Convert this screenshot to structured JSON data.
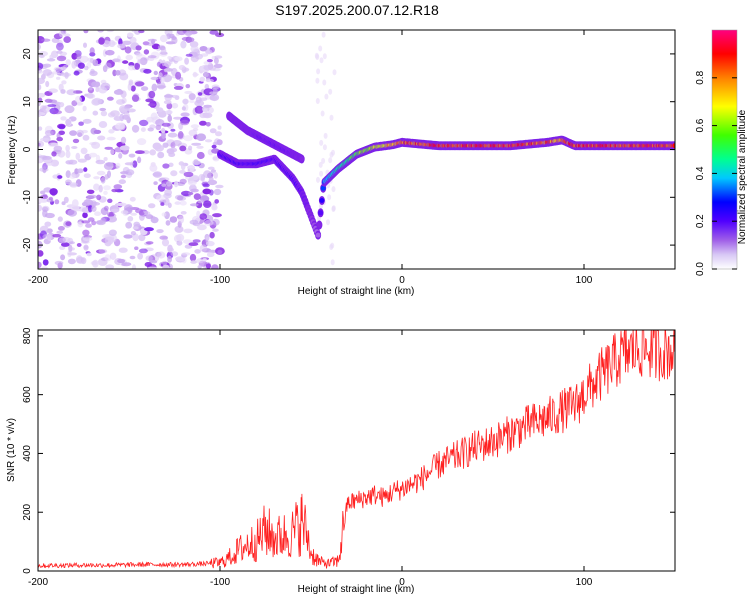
{
  "figure": {
    "title": "S197.2025.200.07.12.R18"
  },
  "chart_data": [
    {
      "type": "heatmap",
      "title": "S197.2025.200.07.12.R18",
      "xlabel": "Height of straight line (km)",
      "ylabel": "Frequency (Hz)",
      "xlim": [
        -200,
        150
      ],
      "ylim": [
        -25,
        25
      ],
      "xticks": [
        -200,
        -100,
        0,
        100
      ],
      "yticks": [
        -20,
        -10,
        0,
        10,
        20
      ],
      "colorbar": {
        "label": "Normalized spectral amplitude",
        "range": [
          0,
          1
        ],
        "ticks": [
          0.0,
          0.2,
          0.4,
          0.6,
          0.8
        ],
        "tick_labels": [
          "0.0",
          "0.2",
          "0.4",
          "0.6",
          "0.8"
        ],
        "colormap": [
          "#ffffff",
          "#c8a8f0",
          "#8a2be2",
          "#4b00ff",
          "#0000ff",
          "#00c8ff",
          "#00ff80",
          "#80ff00",
          "#ffff00",
          "#ff8000",
          "#ff0000",
          "#ff0080"
        ]
      },
      "noise_region": {
        "x_range": [
          -200,
          -100
        ],
        "y_range": [
          -25,
          25
        ],
        "level": 0.1
      },
      "ridge": [
        {
          "x": -100,
          "y": -1,
          "amp": 0.3
        },
        {
          "x": -90,
          "y": -3,
          "amp": 0.3
        },
        {
          "x": -80,
          "y": -3,
          "amp": 0.32
        },
        {
          "x": -70,
          "y": -2,
          "amp": 0.28
        },
        {
          "x": -60,
          "y": -6,
          "amp": 0.3
        },
        {
          "x": -55,
          "y": -9,
          "amp": 0.25
        },
        {
          "x": -50,
          "y": -14,
          "amp": 0.2
        },
        {
          "x": -46,
          "y": -18,
          "amp": 0.15
        },
        {
          "x": -43,
          "y": -7,
          "amp": 0.45
        },
        {
          "x": -35,
          "y": -4,
          "amp": 0.55
        },
        {
          "x": -25,
          "y": -1,
          "amp": 0.65
        },
        {
          "x": -15,
          "y": 0.5,
          "amp": 0.75
        },
        {
          "x": -5,
          "y": 1,
          "amp": 0.85
        },
        {
          "x": 0,
          "y": 1.5,
          "amp": 0.9
        },
        {
          "x": 20,
          "y": 0.8,
          "amp": 0.95
        },
        {
          "x": 60,
          "y": 0.8,
          "amp": 0.95
        },
        {
          "x": 80,
          "y": 1.5,
          "amp": 0.9
        },
        {
          "x": 88,
          "y": 2,
          "amp": 0.85
        },
        {
          "x": 95,
          "y": 0.8,
          "amp": 0.95
        },
        {
          "x": 120,
          "y": 0.8,
          "amp": 0.95
        },
        {
          "x": 150,
          "y": 0.8,
          "amp": 0.95
        }
      ],
      "secondary_ridge": [
        {
          "x": -95,
          "y": 7,
          "amp": 0.2
        },
        {
          "x": -85,
          "y": 4,
          "amp": 0.22
        },
        {
          "x": -75,
          "y": 2,
          "amp": 0.25
        },
        {
          "x": -65,
          "y": 0,
          "amp": 0.25
        },
        {
          "x": -55,
          "y": -2,
          "amp": 0.2
        }
      ]
    },
    {
      "type": "line",
      "xlabel": "Height of straight line (km)",
      "ylabel": "SNR (10 * v/v)",
      "xlim": [
        -200,
        150
      ],
      "ylim": [
        0,
        820
      ],
      "xticks": [
        -200,
        -100,
        0,
        100
      ],
      "yticks": [
        0,
        200,
        400,
        600,
        800
      ],
      "color": "#ff2020",
      "series": [
        {
          "x": [
            -200,
            -180,
            -160,
            -140,
            -120,
            -110,
            -100,
            -95,
            -90,
            -85,
            -80,
            -75,
            -70,
            -65,
            -60,
            -55,
            -52,
            -50,
            -45,
            -40,
            -35,
            -32,
            -30,
            -25,
            -20,
            -15,
            -10,
            -5,
            0,
            10,
            20,
            30,
            40,
            50,
            60,
            70,
            80,
            90,
            95,
            100,
            110,
            120,
            130,
            140,
            150
          ],
          "values": [
            18,
            20,
            20,
            22,
            22,
            24,
            28,
            45,
            70,
            90,
            100,
            140,
            110,
            120,
            130,
            170,
            120,
            60,
            30,
            25,
            35,
            150,
            230,
            240,
            250,
            260,
            250,
            270,
            280,
            310,
            360,
            390,
            420,
            440,
            470,
            500,
            520,
            550,
            560,
            600,
            670,
            730,
            760,
            750,
            750
          ]
        }
      ]
    }
  ]
}
